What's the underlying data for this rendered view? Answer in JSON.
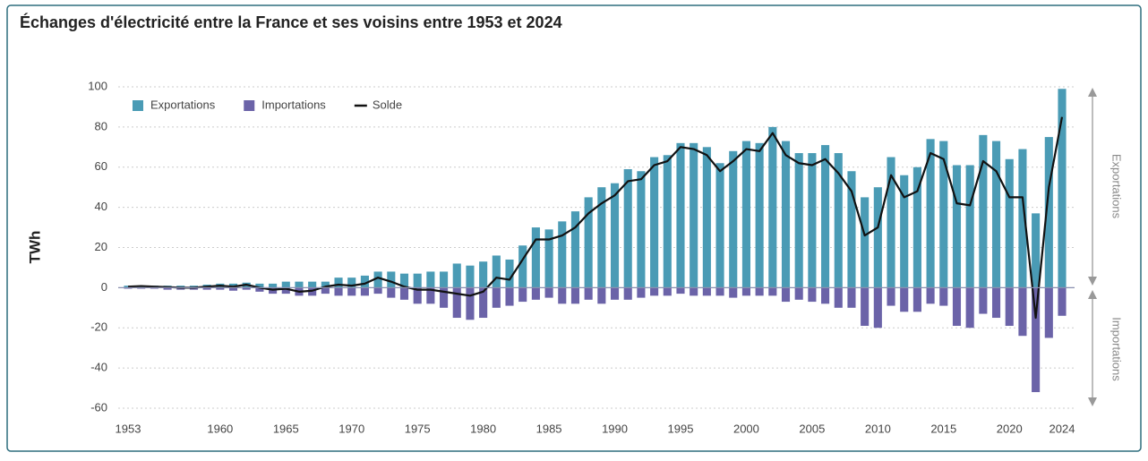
{
  "chart_data": {
    "type": "bar-line",
    "title": "Échanges d'électricité entre la France et ses voisins entre 1953 et 2024",
    "y_label": "TWh",
    "annotations": [
      "Exportations",
      "Importations"
    ],
    "x": [
      1953,
      1954,
      1955,
      1956,
      1957,
      1958,
      1959,
      1960,
      1961,
      1962,
      1963,
      1964,
      1965,
      1966,
      1967,
      1968,
      1969,
      1970,
      1971,
      1972,
      1973,
      1974,
      1975,
      1976,
      1977,
      1978,
      1979,
      1980,
      1981,
      1982,
      1983,
      1984,
      1985,
      1986,
      1987,
      1988,
      1989,
      1990,
      1991,
      1992,
      1993,
      1994,
      1995,
      1996,
      1997,
      1998,
      1999,
      2000,
      2001,
      2002,
      2003,
      2004,
      2005,
      2006,
      2007,
      2008,
      2009,
      2010,
      2011,
      2012,
      2013,
      2014,
      2015,
      2016,
      2017,
      2018,
      2019,
      2020,
      2021,
      2022,
      2023,
      2024
    ],
    "series": [
      {
        "name": "Exportations",
        "kind": "bar",
        "color": "#4a9bb5",
        "values": [
          1,
          1,
          1,
          1,
          1,
          1,
          1.5,
          2,
          2,
          2.5,
          2,
          2,
          3,
          3,
          3,
          3,
          5,
          5,
          6,
          8,
          8,
          7,
          7,
          8,
          8,
          12,
          11,
          13,
          16,
          14,
          21,
          30,
          29,
          33,
          38,
          45,
          50,
          52,
          59,
          58,
          65,
          66,
          72,
          72,
          70,
          62,
          68,
          73,
          72,
          80,
          73,
          67,
          67,
          71,
          67,
          58,
          45,
          50,
          65,
          56,
          60,
          74,
          73,
          61,
          61,
          76,
          73,
          64,
          69,
          37,
          75,
          99
        ]
      },
      {
        "name": "Importations",
        "kind": "bar",
        "color": "#6b63a8",
        "values": [
          -0.5,
          -0.5,
          -0.5,
          -1,
          -1,
          -1,
          -1,
          -1,
          -1.5,
          -1,
          -2,
          -3,
          -3,
          -4,
          -4,
          -3,
          -4,
          -4,
          -4,
          -3,
          -5,
          -6,
          -8,
          -8,
          -10,
          -15,
          -16,
          -15,
          -10,
          -9,
          -7,
          -6,
          -5,
          -8,
          -8,
          -6,
          -8,
          -6,
          -6,
          -5,
          -4,
          -4,
          -3,
          -4,
          -4,
          -4,
          -5,
          -4,
          -4,
          -4,
          -7,
          -6,
          -7,
          -8,
          -10,
          -10,
          -19,
          -20,
          -9,
          -12,
          -12,
          -8,
          -9,
          -19,
          -20,
          -13,
          -15,
          -19,
          -24,
          -52,
          -25,
          -14
        ]
      },
      {
        "name": "Solde",
        "kind": "line",
        "color": "#111111",
        "values": [
          0.5,
          0.8,
          0.5,
          0.3,
          0,
          0,
          0.5,
          1,
          0.5,
          1.5,
          0,
          -1,
          -0.5,
          -2,
          -1.5,
          0.5,
          1.5,
          1,
          2,
          5,
          3,
          0.5,
          -1,
          -1,
          -2,
          -3,
          -4,
          -2,
          5,
          4,
          14,
          24,
          24,
          26,
          30,
          37,
          42,
          46,
          53,
          54,
          61,
          63,
          70,
          69,
          66,
          58,
          63,
          69,
          68,
          77,
          66,
          62,
          61,
          64,
          57,
          48,
          26,
          30,
          56,
          45,
          48,
          67,
          64,
          42,
          41,
          63,
          58,
          45,
          45,
          -15,
          50,
          85
        ]
      }
    ],
    "xlim": [
      1953,
      2024
    ],
    "xticks": [
      1953,
      1960,
      1965,
      1970,
      1975,
      1980,
      1985,
      1990,
      1995,
      2000,
      2005,
      2010,
      2015,
      2020,
      2024
    ],
    "ylim": [
      -60,
      100
    ],
    "yticks": [
      -60,
      -40,
      -20,
      0,
      20,
      40,
      60,
      80,
      100
    ],
    "grid": true,
    "legend": "upper left"
  }
}
